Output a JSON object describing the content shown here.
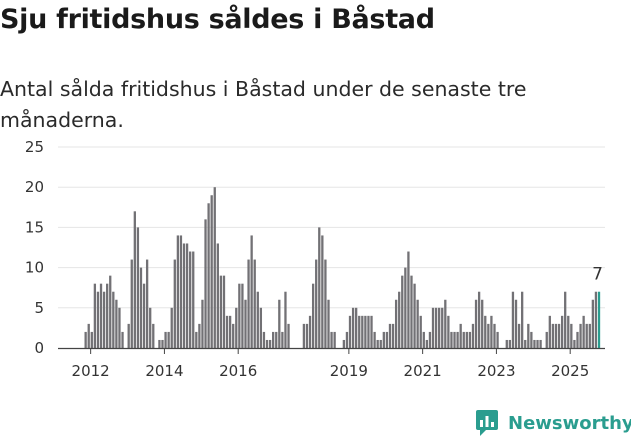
{
  "chart_data": {
    "type": "bar",
    "title": "Sju fritidshus såldes i Båstad",
    "subtitle": "Antal sålda fritidshus i Båstad under de senaste tre månaderna.",
    "x_tick_labels": [
      "2012",
      "2014",
      "2016",
      "2019",
      "2021",
      "2023",
      "2025"
    ],
    "y_tick_labels": [
      "0",
      "5",
      "10",
      "15",
      "20",
      "25"
    ],
    "ylim": [
      0,
      25
    ],
    "grid": "horizontal",
    "start": "2011-11",
    "values": [
      2,
      3,
      2,
      8,
      7,
      8,
      7,
      8,
      9,
      7,
      6,
      5,
      2,
      0,
      3,
      11,
      17,
      15,
      10,
      8,
      11,
      5,
      3,
      0,
      1,
      1,
      2,
      2,
      5,
      11,
      14,
      14,
      13,
      13,
      12,
      12,
      2,
      3,
      6,
      16,
      18,
      19,
      20,
      13,
      9,
      9,
      4,
      4,
      3,
      5,
      8,
      8,
      6,
      11,
      14,
      11,
      7,
      5,
      2,
      1,
      1,
      2,
      2,
      6,
      2,
      7,
      3,
      0,
      0,
      0,
      0,
      3,
      3,
      4,
      8,
      11,
      15,
      14,
      11,
      6,
      2,
      2,
      0,
      0,
      1,
      2,
      4,
      5,
      5,
      4,
      4,
      4,
      4,
      4,
      2,
      1,
      1,
      2,
      2,
      3,
      3,
      6,
      7,
      9,
      10,
      12,
      9,
      8,
      6,
      4,
      2,
      1,
      2,
      5,
      5,
      5,
      5,
      6,
      4,
      2,
      2,
      2,
      3,
      2,
      2,
      2,
      3,
      6,
      7,
      6,
      4,
      3,
      4,
      3,
      2,
      0,
      0,
      1,
      1,
      7,
      6,
      3,
      7,
      1,
      3,
      2,
      1,
      1,
      1,
      0,
      2,
      4,
      3,
      3,
      3,
      4,
      7,
      4,
      3,
      1,
      2,
      3,
      4,
      3,
      3,
      6,
      7,
      7
    ],
    "highlight_last": true,
    "last_value_label": "7",
    "colors": {
      "bar": "#727175",
      "highlight": "#2a9d8f",
      "grid": "#e5e5e5",
      "axis": "#444444"
    }
  },
  "brand": {
    "name": "Newsworthy",
    "icon": "bar-chart-logo-icon"
  }
}
